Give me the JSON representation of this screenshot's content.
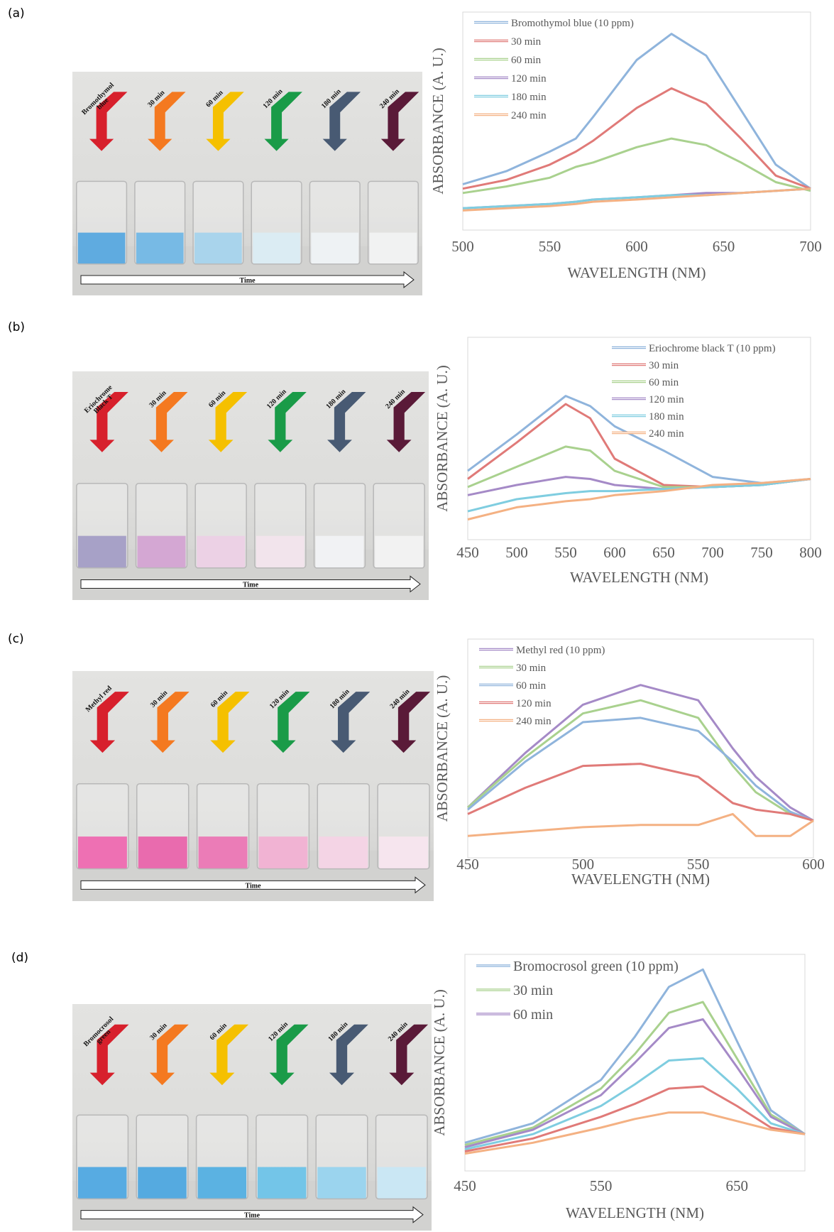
{
  "panels": [
    {
      "label": "(a)",
      "arrow_labels": [
        [
          "Bromothymol",
          "blue"
        ],
        [
          "30 min"
        ],
        [
          "60 min"
        ],
        [
          "120 min"
        ],
        [
          "180 min"
        ],
        [
          "240 min"
        ]
      ],
      "time_label": "Time",
      "liquid_colors": [
        "#2a8fd6",
        "#4aa3dc",
        "#8cc6e6",
        "#cfe6ef",
        "#e8eef0",
        "#eceeee"
      ]
    },
    {
      "label": "(b)",
      "arrow_labels": [
        [
          "Eriochrome",
          "Black T"
        ],
        [
          "30 min"
        ],
        [
          "60 min"
        ],
        [
          "120 min"
        ],
        [
          "180 min"
        ],
        [
          "240 min"
        ]
      ],
      "time_label": "Time",
      "liquid_colors": [
        "#8a82b4",
        "#c68ac4",
        "#e6c2dc",
        "#eedbe6",
        "#eceef0",
        "#eeeeee"
      ]
    },
    {
      "label": "(c)",
      "arrow_labels": [
        [
          "Methyl red"
        ],
        [
          "30 min"
        ],
        [
          "60 min"
        ],
        [
          "120 min"
        ],
        [
          "180 min"
        ],
        [
          "240 min"
        ]
      ],
      "time_label": "Time",
      "liquid_colors": [
        "#e8409a",
        "#e23a93",
        "#e4509f",
        "#ec9ac4",
        "#f1c6dc",
        "#f3dde8"
      ]
    },
    {
      "label": "(d)",
      "arrow_labels": [
        [
          "Bromocrosol",
          "green"
        ],
        [
          "30 min"
        ],
        [
          "60 min"
        ],
        [
          "120 min"
        ],
        [
          "180 min"
        ],
        [
          "240 min"
        ]
      ],
      "time_label": "Time",
      "liquid_colors": [
        "#1f8fd8",
        "#1c8ed6",
        "#2498d8",
        "#45b2e0",
        "#7ac6e8",
        "#b8dff0"
      ]
    }
  ],
  "chart_data": [
    {
      "type": "line",
      "xlabel": "WAVELENGTH (NM)",
      "ylabel": "ABSORBANCE (A. U.)",
      "legend": "upper left",
      "x": [
        500,
        525,
        550,
        565,
        575,
        600,
        620,
        640,
        660,
        680,
        700
      ],
      "xlim": [
        500,
        700
      ],
      "xticks": [
        500,
        550,
        600,
        650,
        700
      ],
      "ylim": [
        0,
        1
      ],
      "series": [
        {
          "name": "Bromothymol blue (10 ppm)",
          "color": "#8fb4dc",
          "values": [
            0.21,
            0.27,
            0.36,
            0.42,
            0.52,
            0.78,
            0.9,
            0.8,
            0.55,
            0.3,
            0.19
          ]
        },
        {
          "name": "30 min",
          "color": "#e07a78",
          "values": [
            0.19,
            0.23,
            0.3,
            0.36,
            0.41,
            0.56,
            0.65,
            0.58,
            0.42,
            0.25,
            0.19
          ]
        },
        {
          "name": "60 min",
          "color": "#a9d18e",
          "values": [
            0.17,
            0.2,
            0.24,
            0.29,
            0.31,
            0.38,
            0.42,
            0.39,
            0.31,
            0.22,
            0.18
          ]
        },
        {
          "name": "120 min",
          "color": "#a58ac7",
          "values": [
            0.1,
            0.11,
            0.12,
            0.13,
            0.14,
            0.15,
            0.16,
            0.17,
            0.17,
            0.18,
            0.19
          ]
        },
        {
          "name": "180 min",
          "color": "#7fcde0",
          "values": [
            0.1,
            0.11,
            0.12,
            0.13,
            0.14,
            0.15,
            0.16,
            0.16,
            0.17,
            0.18,
            0.19
          ]
        },
        {
          "name": "240 min",
          "color": "#f4b183",
          "values": [
            0.09,
            0.1,
            0.11,
            0.12,
            0.13,
            0.14,
            0.15,
            0.16,
            0.17,
            0.18,
            0.19
          ]
        }
      ]
    },
    {
      "type": "line",
      "xlabel": "WAVELENGTH (NM)",
      "ylabel": "ABSORBANCE (A. U.)",
      "legend": "upper right",
      "x": [
        450,
        500,
        550,
        575,
        600,
        650,
        700,
        750,
        800
      ],
      "xlim": [
        450,
        800
      ],
      "xticks": [
        450,
        500,
        550,
        600,
        650,
        700,
        750,
        800
      ],
      "ylim": [
        0,
        1
      ],
      "series": [
        {
          "name": "Eriochrome black T (10 ppm)",
          "color": "#8fb4dc",
          "values": [
            0.34,
            0.52,
            0.71,
            0.66,
            0.56,
            0.44,
            0.31,
            0.28,
            0.3
          ]
        },
        {
          "name": "30 min",
          "color": "#e07a78",
          "values": [
            0.3,
            0.48,
            0.67,
            0.6,
            0.4,
            0.27,
            0.26,
            0.27,
            0.3
          ]
        },
        {
          "name": "60 min",
          "color": "#a9d18e",
          "values": [
            0.26,
            0.36,
            0.46,
            0.44,
            0.34,
            0.26,
            0.26,
            0.27,
            0.3
          ]
        },
        {
          "name": "120 min",
          "color": "#a58ac7",
          "values": [
            0.22,
            0.27,
            0.31,
            0.3,
            0.27,
            0.25,
            0.26,
            0.27,
            0.3
          ]
        },
        {
          "name": "180 min",
          "color": "#7fcde0",
          "values": [
            0.14,
            0.2,
            0.23,
            0.24,
            0.24,
            0.25,
            0.26,
            0.27,
            0.3
          ]
        },
        {
          "name": "240 min",
          "color": "#f4b183",
          "values": [
            0.1,
            0.16,
            0.19,
            0.2,
            0.22,
            0.24,
            0.27,
            0.28,
            0.3
          ]
        }
      ]
    },
    {
      "type": "line",
      "xlabel": "WAVELENGTH (NM)",
      "ylabel": "ABSORBANCE (A. U.)",
      "legend": "upper left",
      "x": [
        450,
        475,
        500,
        525,
        550,
        565,
        575,
        590,
        600
      ],
      "xlim": [
        450,
        600
      ],
      "xticks": [
        450,
        500,
        550,
        600
      ],
      "ylim": [
        0,
        1
      ],
      "series": [
        {
          "name": "Methyl red (10 ppm)",
          "color": "#a58ac7",
          "values": [
            0.23,
            0.48,
            0.7,
            0.79,
            0.72,
            0.5,
            0.37,
            0.23,
            0.17
          ]
        },
        {
          "name": "30 min",
          "color": "#a9d18e",
          "values": [
            0.23,
            0.46,
            0.66,
            0.72,
            0.64,
            0.42,
            0.3,
            0.2,
            0.17
          ]
        },
        {
          "name": "60 min",
          "color": "#8fb4dc",
          "values": [
            0.22,
            0.44,
            0.62,
            0.64,
            0.58,
            0.44,
            0.33,
            0.21,
            0.17
          ]
        },
        {
          "name": "120 min",
          "color": "#e07a78",
          "values": [
            0.2,
            0.32,
            0.42,
            0.43,
            0.37,
            0.25,
            0.22,
            0.2,
            0.17
          ]
        },
        {
          "name": "240 min",
          "color": "#f4b183",
          "values": [
            0.1,
            0.12,
            0.14,
            0.15,
            0.15,
            0.2,
            0.1,
            0.1,
            0.17
          ]
        }
      ]
    },
    {
      "type": "line",
      "xlabel": "WAVELENGTH (NM)",
      "ylabel": "ABSORBANCE (A. U.)",
      "legend": "upper left",
      "x": [
        450,
        500,
        550,
        575,
        600,
        625,
        650,
        675,
        700
      ],
      "xlim": [
        450,
        700
      ],
      "xticks": [
        450,
        550,
        650
      ],
      "ylim": [
        0,
        1
      ],
      "series": [
        {
          "name": "Bromocrosol green (10 ppm)",
          "color": "#8fb4dc",
          "values": [
            0.13,
            0.22,
            0.42,
            0.62,
            0.85,
            0.93,
            0.6,
            0.28,
            0.17
          ]
        },
        {
          "name": "30 min",
          "color": "#a9d18e",
          "values": [
            0.12,
            0.2,
            0.38,
            0.54,
            0.73,
            0.78,
            0.52,
            0.26,
            0.17
          ]
        },
        {
          "name": "60 min",
          "color": "#a58ac7",
          "values": [
            0.11,
            0.19,
            0.35,
            0.5,
            0.66,
            0.7,
            0.48,
            0.25,
            0.17
          ]
        },
        {
          "color": "#7fcde0",
          "values": [
            0.1,
            0.17,
            0.3,
            0.4,
            0.51,
            0.52,
            0.38,
            0.22,
            0.17
          ]
        },
        {
          "color": "#e07a78",
          "values": [
            0.09,
            0.15,
            0.25,
            0.31,
            0.38,
            0.39,
            0.3,
            0.2,
            0.17
          ]
        },
        {
          "color": "#f4b183",
          "values": [
            0.08,
            0.13,
            0.2,
            0.24,
            0.27,
            0.27,
            0.23,
            0.19,
            0.17
          ]
        }
      ]
    }
  ]
}
